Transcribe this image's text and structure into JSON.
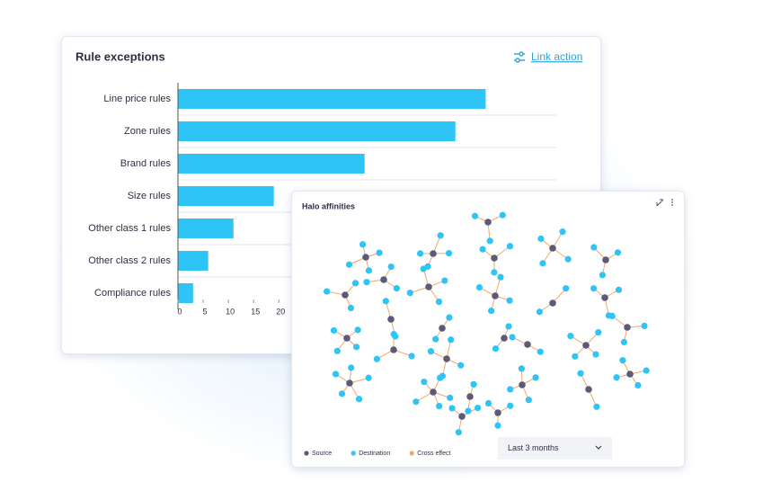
{
  "chart_data": {
    "type": "bar",
    "orientation": "horizontal",
    "title": "Rule exceptions",
    "categories": [
      "Line price rules",
      "Zone rules",
      "Brand rules",
      "Size rules",
      "Other class 1 rules",
      "Other class 2 rules",
      "Compliance rules"
    ],
    "values": [
      61,
      55,
      37,
      19,
      11,
      6,
      3
    ],
    "color": "#2ec4f5",
    "xlim": [
      0,
      75
    ],
    "xticks": [
      0,
      5,
      10,
      15,
      20
    ]
  },
  "link_action": "Link action",
  "halo": {
    "title": "Halo affinities",
    "legend": [
      {
        "label": "Source",
        "color": "#5b5a78"
      },
      {
        "label": "Destination",
        "color": "#2ec4f5"
      },
      {
        "label": "Cross effect",
        "color": "#f5a56b"
      }
    ],
    "dropdown": "Last 3 months"
  }
}
